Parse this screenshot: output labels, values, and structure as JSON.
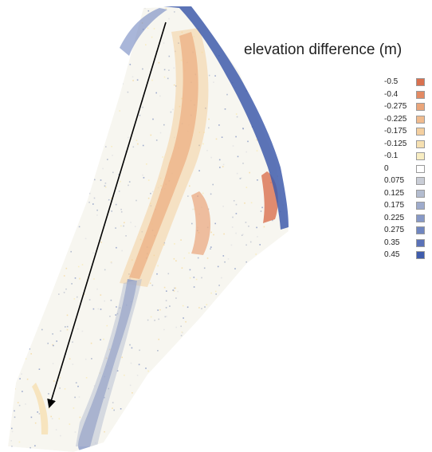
{
  "legend": {
    "title": "elevation difference (m)",
    "items": [
      {
        "label": "-0.5",
        "color": "#d9714f"
      },
      {
        "label": "-0.4",
        "color": "#e38a63"
      },
      {
        "label": "-0.275",
        "color": "#eaa57a"
      },
      {
        "label": "-0.225",
        "color": "#f0bb8e"
      },
      {
        "label": "-0.175",
        "color": "#f4cf9f"
      },
      {
        "label": "-0.125",
        "color": "#f6e0b1"
      },
      {
        "label": "-0.1",
        "color": "#f8edc2"
      },
      {
        "label": "0",
        "color": "#ffffff"
      },
      {
        "label": "0.075",
        "color": "#c9cdd6"
      },
      {
        "label": "0.125",
        "color": "#b3bccf"
      },
      {
        "label": "0.175",
        "color": "#9eabcc"
      },
      {
        "label": "0.225",
        "color": "#8799c7"
      },
      {
        "label": "0.275",
        "color": "#7086c0"
      },
      {
        "label": "0.35",
        "color": "#5a72b8"
      },
      {
        "label": "0.45",
        "color": "#3f5cac"
      }
    ]
  }
}
